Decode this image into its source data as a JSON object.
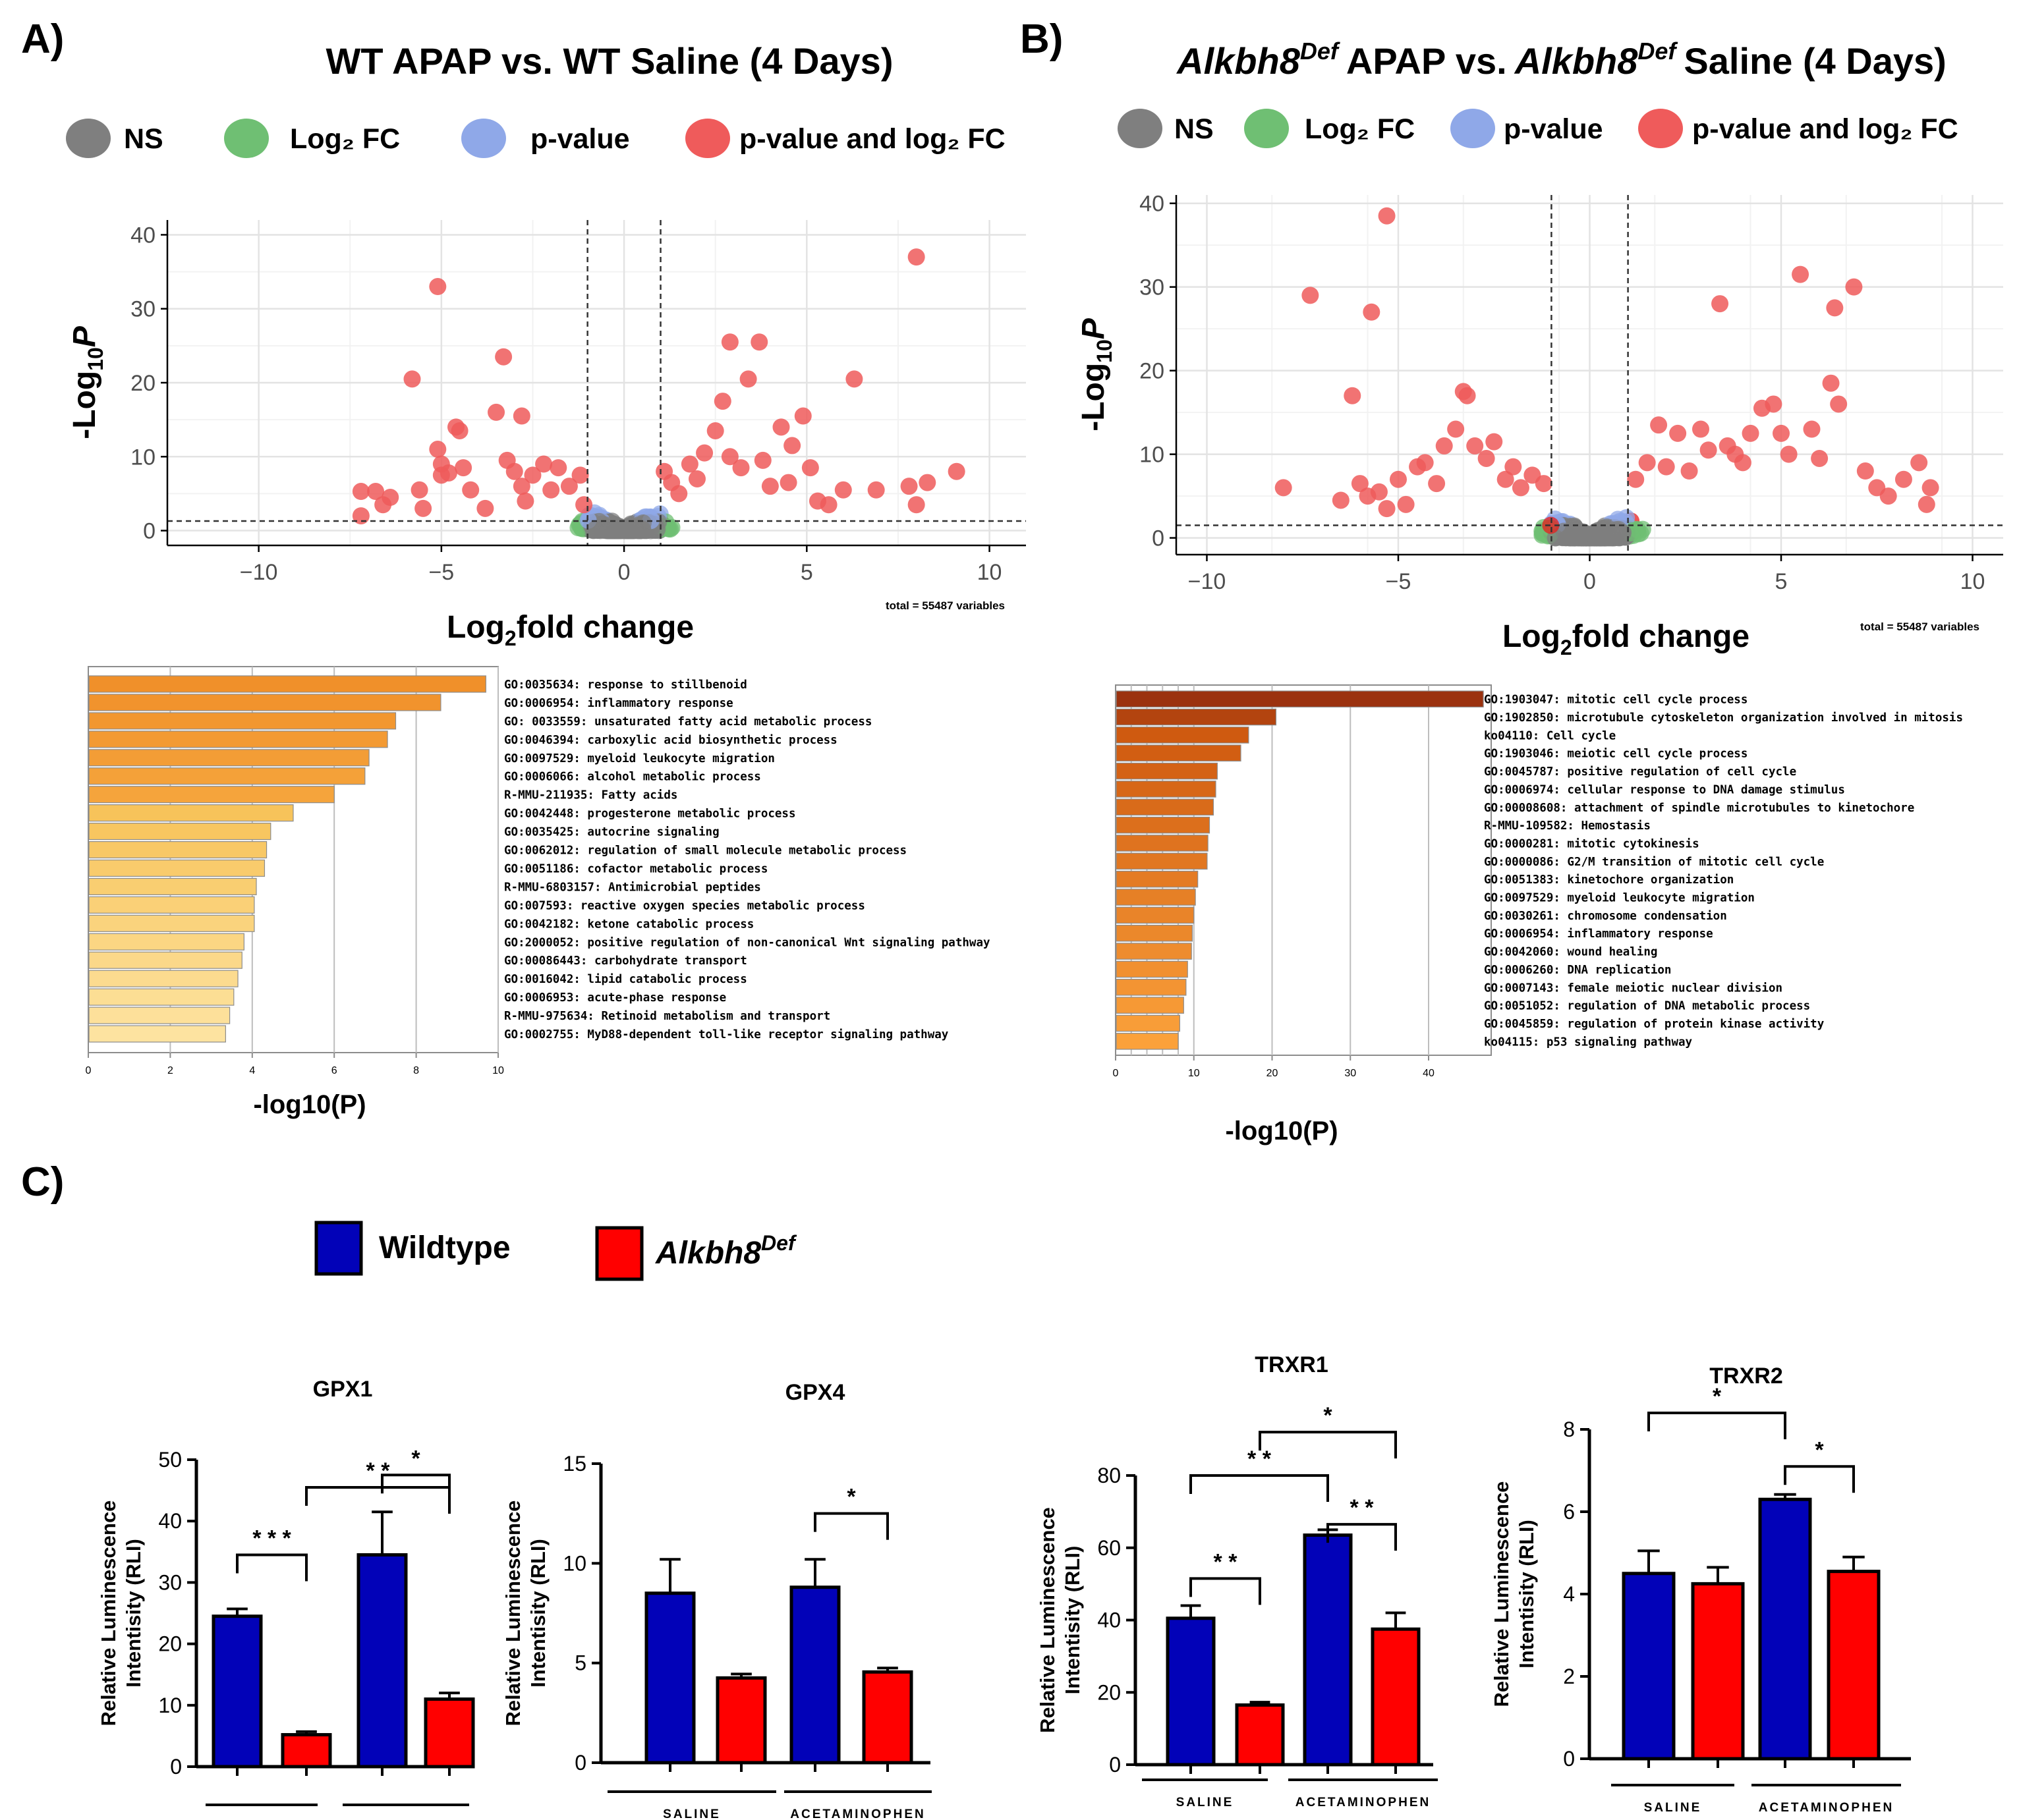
{
  "panels": {
    "A": {
      "label": "A)",
      "title": "WT APAP vs. WT Saline (4 Days)",
      "legend": [
        "NS",
        "Log₂ FC",
        "p-value",
        "p-value and log₂ FC"
      ],
      "total_text": "total = 55487 variables",
      "go_xlabel": "-log10(P)"
    },
    "B": {
      "label": "B)",
      "title_gene": "Alkbh8",
      "title_sup": "Def",
      "title_mid": "APAP vs.",
      "title_end": "Saline (4 Days)",
      "legend": [
        "NS",
        "Log₂ FC",
        "p-value",
        "p-value and log₂ FC"
      ],
      "total_text": "total = 55487 variables",
      "go_xlabel": "-log10(P)"
    },
    "C": {
      "label": "C)",
      "legend": {
        "wildtype": "Wildtype",
        "alk_gene": "Alkbh8",
        "alk_sup": "Def"
      },
      "group_labels": [
        "SALINE",
        "ACETAMINOPHEN"
      ]
    }
  },
  "colors": {
    "ns": "#7f7f7f",
    "log2fc": "#6fbf73",
    "pvalue": "#8fa8e8",
    "both": "#ef5b5b",
    "both_solid": "#e81c1c",
    "blue_bar": "#0202b8",
    "red_bar": "#ff0000"
  },
  "chart_data": [
    {
      "id": "volcano-a",
      "type": "scatter",
      "title": "WT APAP vs. WT Saline (4 Days)",
      "xlabel": "Log₂fold change",
      "ylabel": "-Log₁₀P",
      "xlim": [
        -12.5,
        11
      ],
      "ylim": [
        -2,
        42
      ],
      "xticks": [
        -10,
        -5,
        0,
        5,
        10
      ],
      "yticks": [
        0,
        10,
        20,
        30,
        40
      ],
      "fc_cutoff": [
        -1,
        1
      ],
      "p_cutoff": 1.3,
      "highlight_points": [
        [
          -7.2,
          5.3
        ],
        [
          -7.2,
          2
        ],
        [
          -6.8,
          5.3
        ],
        [
          -6.6,
          3.5
        ],
        [
          -6.4,
          4.5
        ],
        [
          -5.8,
          20.5
        ],
        [
          -5.6,
          5.5
        ],
        [
          -5.5,
          3
        ],
        [
          -5.1,
          33
        ],
        [
          -5.1,
          11
        ],
        [
          -5.0,
          9
        ],
        [
          -5.0,
          7.5
        ],
        [
          -4.8,
          7.8
        ],
        [
          -4.6,
          14
        ],
        [
          -4.5,
          13.5
        ],
        [
          -4.4,
          8.5
        ],
        [
          -4.2,
          5.5
        ],
        [
          -3.8,
          3
        ],
        [
          -3.5,
          16
        ],
        [
          -3.3,
          23.5
        ],
        [
          -3.2,
          9.5
        ],
        [
          -3.0,
          8
        ],
        [
          -2.8,
          6
        ],
        [
          -2.7,
          4
        ],
        [
          -2.5,
          7.5
        ],
        [
          -2.8,
          15.5
        ],
        [
          -2.2,
          9
        ],
        [
          -2.0,
          5.5
        ],
        [
          -1.8,
          8.5
        ],
        [
          -1.5,
          6
        ],
        [
          -1.2,
          7.5
        ],
        [
          -1.1,
          3.5
        ],
        [
          1.1,
          8
        ],
        [
          1.3,
          6.5
        ],
        [
          1.5,
          5
        ],
        [
          1.8,
          9
        ],
        [
          2.0,
          7
        ],
        [
          2.2,
          10.5
        ],
        [
          2.5,
          13.5
        ],
        [
          2.7,
          17.5
        ],
        [
          2.9,
          25.5
        ],
        [
          2.9,
          10
        ],
        [
          3.2,
          8.5
        ],
        [
          3.4,
          20.5
        ],
        [
          3.7,
          25.5
        ],
        [
          3.8,
          9.5
        ],
        [
          4.0,
          6
        ],
        [
          4.3,
          14
        ],
        [
          4.5,
          6.5
        ],
        [
          4.6,
          11.5
        ],
        [
          4.9,
          15.5
        ],
        [
          5.1,
          8.5
        ],
        [
          5.3,
          4
        ],
        [
          5.6,
          3.5
        ],
        [
          6.0,
          5.5
        ],
        [
          6.3,
          20.5
        ],
        [
          6.9,
          5.5
        ],
        [
          7.8,
          6
        ],
        [
          8.0,
          37
        ],
        [
          8.0,
          3.5
        ],
        [
          8.3,
          6.5
        ],
        [
          9.1,
          8
        ]
      ]
    },
    {
      "id": "volcano-b",
      "type": "scatter",
      "title": "Alkbh8Def APAP vs. Alkbh8Def Saline (4 Days)",
      "xlabel": "Log₂fold change",
      "ylabel": "-Log₁₀P",
      "xlim": [
        -10.8,
        10.8
      ],
      "ylim": [
        -2,
        41
      ],
      "xticks": [
        -10,
        -5,
        0,
        5,
        10
      ],
      "yticks": [
        0,
        10,
        20,
        30,
        40
      ],
      "fc_cutoff": [
        -1,
        1
      ],
      "p_cutoff": 1.5,
      "highlight_points": [
        [
          -8.0,
          6
        ],
        [
          -7.3,
          29
        ],
        [
          -6.5,
          4.5
        ],
        [
          -6.2,
          17
        ],
        [
          -6.0,
          6.5
        ],
        [
          -5.8,
          5
        ],
        [
          -5.7,
          27
        ],
        [
          -5.5,
          5.5
        ],
        [
          -5.3,
          38.5
        ],
        [
          -5.3,
          3.5
        ],
        [
          -5.0,
          7
        ],
        [
          -4.8,
          4
        ],
        [
          -4.5,
          8.5
        ],
        [
          -4.3,
          9
        ],
        [
          -4.0,
          6.5
        ],
        [
          -3.8,
          11
        ],
        [
          -3.5,
          13
        ],
        [
          -3.3,
          17.5
        ],
        [
          -3.2,
          17
        ],
        [
          -3.0,
          11
        ],
        [
          -2.7,
          9.5
        ],
        [
          -2.5,
          11.5
        ],
        [
          -2.2,
          7
        ],
        [
          -2.0,
          8.5
        ],
        [
          -1.8,
          6
        ],
        [
          -1.5,
          7.5
        ],
        [
          -1.2,
          6.5
        ],
        [
          1.2,
          7
        ],
        [
          1.5,
          9
        ],
        [
          1.8,
          13.5
        ],
        [
          2.0,
          8.5
        ],
        [
          2.3,
          12.5
        ],
        [
          2.6,
          8
        ],
        [
          2.9,
          13
        ],
        [
          3.1,
          10.5
        ],
        [
          3.4,
          28
        ],
        [
          3.6,
          11
        ],
        [
          3.8,
          10
        ],
        [
          4.0,
          9
        ],
        [
          4.2,
          12.5
        ],
        [
          4.5,
          15.5
        ],
        [
          4.8,
          16
        ],
        [
          5.0,
          12.5
        ],
        [
          5.2,
          10
        ],
        [
          5.5,
          31.5
        ],
        [
          5.8,
          13
        ],
        [
          6.0,
          9.5
        ],
        [
          6.3,
          18.5
        ],
        [
          6.4,
          27.5
        ],
        [
          6.5,
          16
        ],
        [
          6.9,
          30
        ],
        [
          7.2,
          8
        ],
        [
          7.5,
          6
        ],
        [
          7.8,
          5
        ],
        [
          8.2,
          7
        ],
        [
          8.6,
          9
        ],
        [
          8.9,
          6
        ],
        [
          8.8,
          4
        ]
      ]
    },
    {
      "id": "go-a",
      "type": "bar",
      "orientation": "horizontal",
      "xlabel": "-log10(P)",
      "xlim": [
        0,
        10
      ],
      "xticks": [
        0,
        2,
        4,
        6,
        8,
        10
      ],
      "categories": [
        "GO:0035634: response to stillbenoid",
        "GO:0006954: inflammatory response",
        "GO: 0033559: unsaturated fatty acid metabolic process",
        "GO:0046394: carboxylic acid biosynthetic process",
        "GO:0097529: myeloid leukocyte migration",
        "GO:0006066: alcohol metabolic process",
        "R-MMU-211935: Fatty acids",
        "GO:0042448: progesterone metabolic process",
        "GO:0035425: autocrine signaling",
        "GO:0062012: regulation of small molecule metabolic process",
        "GO:0051186: cofactor metabolic process",
        "R-MMU-6803157: Antimicrobial peptides",
        "GO:007593: reactive oxygen species metabolic process",
        "GO:0042182: ketone catabolic process",
        "GO:2000052: positive regulation of non-canonical Wnt signaling pathway",
        "GO:00086443: carbohydrate transport",
        "GO:0016042: lipid catabolic process",
        "GO:0006953: acute-phase response",
        "R-MMU-975634: Retinoid metabolism and transport",
        "GO:0002755: MyD88-dependent toll-like receptor signaling pathway"
      ],
      "values": [
        9.7,
        8.6,
        7.5,
        7.3,
        6.85,
        6.75,
        6.0,
        5.0,
        4.45,
        4.35,
        4.3,
        4.1,
        4.05,
        4.05,
        3.8,
        3.75,
        3.65,
        3.55,
        3.45,
        3.35
      ]
    },
    {
      "id": "go-b",
      "type": "bar",
      "orientation": "horizontal",
      "xlabel": "-log10(P)",
      "xlim": [
        0,
        48
      ],
      "xticks": [
        0,
        10,
        20,
        30,
        40
      ],
      "categories": [
        "GO:1903047: mitotic cell cycle process",
        "GO:1902850: microtubule cytoskeleton organization involved in mitosis",
        "ko04110: Cell cycle",
        "GO:1903046: meiotic cell cycle process",
        "GO:0045787: positive regulation of cell cycle",
        "GO:0006974: cellular response to DNA damage stimulus",
        "GO:00008608: attachment of spindle microtubules to kinetochore",
        "R-MMU-109582: Hemostasis",
        "GO:0000281: mitotic cytokinesis",
        "GO:0000086: G2/M transition of mitotic cell cycle",
        "GO:0051383: kinetochore organization",
        "GO:0097529: myeloid leukocyte migration",
        "GO:0030261: chromosome condensation",
        "GO:0006954: inflammatory response",
        "GO:0042060: wound healing",
        "GO:0006260: DNA replication",
        "GO:0007143: female meiotic nuclear division",
        "GO:0051052: regulation of DNA metabolic process",
        "GO:0045859: regulation of protein kinase activity",
        "ko04115: p53 signaling pathway"
      ],
      "values": [
        47,
        20.5,
        17,
        16,
        13,
        12.8,
        12.5,
        12,
        11.8,
        11.7,
        10.5,
        10.2,
        10,
        9.8,
        9.7,
        9.2,
        9,
        8.7,
        8.2,
        8
      ]
    },
    {
      "id": "gpx1",
      "type": "bar",
      "title": "GPX1",
      "ylabel": "Relative Luminescence Intentisity (RLI)",
      "ylim": [
        0,
        50
      ],
      "yticks": [
        0,
        10,
        20,
        30,
        40,
        50
      ],
      "categories": [
        "Saline WT",
        "Saline Alkbh8Def",
        "APAP WT",
        "APAP Alkbh8Def"
      ],
      "values": [
        24.5,
        5.2,
        34.5,
        11.0
      ],
      "errors": [
        1.2,
        0.5,
        7.0,
        1.0
      ],
      "brackets": [
        {
          "from": 0,
          "to": 1,
          "y": 34.5,
          "label": "* * *"
        },
        {
          "from": 1,
          "to": 3,
          "y": 45.5,
          "label": "* *"
        },
        {
          "from": 2,
          "to": 3,
          "y": 47.5,
          "label": "*",
          "exclude": true
        }
      ]
    },
    {
      "id": "gpx4",
      "type": "bar",
      "title": "GPX4",
      "ylabel": "Relative Luminescence Intentisity (RLI)",
      "ylim": [
        0,
        15
      ],
      "yticks": [
        0,
        5,
        10,
        15
      ],
      "categories": [
        "Saline WT",
        "Saline Alkbh8Def",
        "APAP WT",
        "APAP Alkbh8Def"
      ],
      "values": [
        8.5,
        4.25,
        8.8,
        4.55
      ],
      "errors": [
        1.7,
        0.2,
        1.4,
        0.2
      ],
      "brackets": [
        {
          "from": 2,
          "to": 3,
          "y": 12.5,
          "label": "*"
        }
      ]
    },
    {
      "id": "trxr1",
      "type": "bar",
      "title": "TRXR1",
      "ylabel": "Relative Luminescence Intentisity (RLI)",
      "ylim": [
        0,
        80
      ],
      "yticks": [
        0,
        20,
        40,
        60,
        80
      ],
      "categories": [
        "Saline WT",
        "Saline Alkbh8Def",
        "APAP WT",
        "APAP Alkbh8Def"
      ],
      "values": [
        40.5,
        16.5,
        63.5,
        37.5
      ],
      "errors": [
        3.5,
        0.8,
        1.5,
        4.5
      ],
      "brackets": [
        {
          "from": 0,
          "to": 1,
          "y": 51.5,
          "label": "* *"
        },
        {
          "from": 0,
          "to": 2,
          "y": 80,
          "label": "* *"
        },
        {
          "from": 2,
          "to": 3,
          "y": 66.5,
          "label": "* *"
        },
        {
          "from": 1,
          "to": 3,
          "y": 92,
          "label": "*"
        }
      ]
    },
    {
      "id": "trxr2",
      "type": "bar",
      "title": "TRXR2",
      "ylabel": "Relative Luminescence Intentisity (RLI)",
      "ylim": [
        0,
        8
      ],
      "yticks": [
        0,
        2,
        4,
        6,
        8
      ],
      "categories": [
        "Saline WT",
        "Saline Alkbh8Def",
        "APAP WT",
        "APAP Alkbh8Def"
      ],
      "values": [
        4.5,
        4.25,
        6.3,
        4.55
      ],
      "errors": [
        0.55,
        0.4,
        0.12,
        0.35
      ],
      "brackets": [
        {
          "from": 0,
          "to": 2,
          "y": 8.4,
          "label": "*"
        },
        {
          "from": 2,
          "to": 3,
          "y": 7.1,
          "label": "*"
        }
      ]
    }
  ]
}
